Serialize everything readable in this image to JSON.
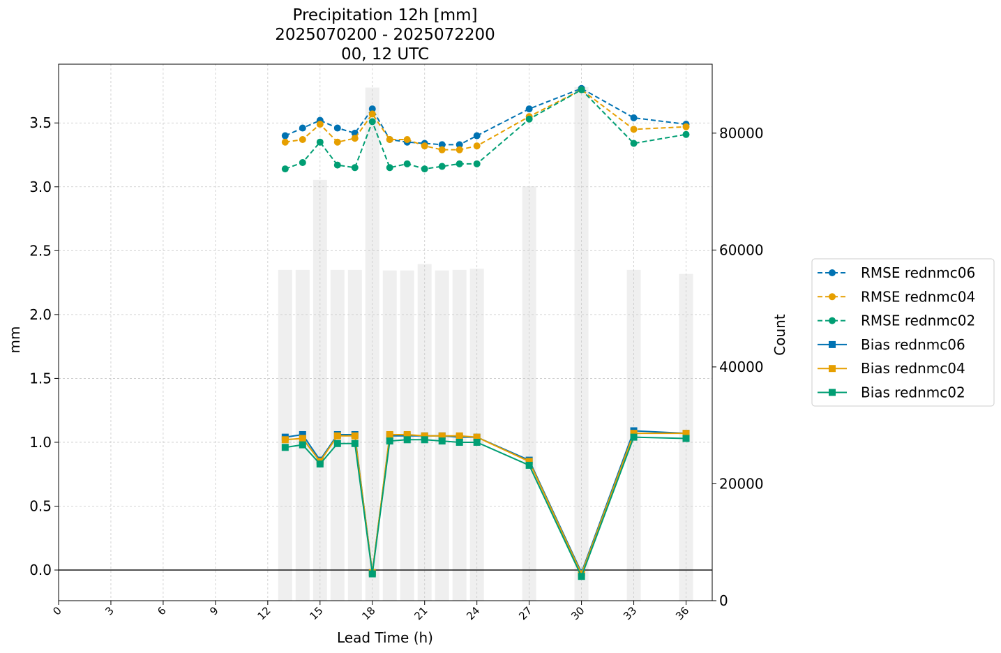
{
  "chart_data": {
    "type": "line",
    "title": [
      "Precipitation 12h [mm]",
      "2025070200 - 2025072200",
      "00, 12 UTC"
    ],
    "xlabel": "Lead Time (h)",
    "ylabel": "mm",
    "y2label": "Count",
    "xlim": [
      0,
      37.5
    ],
    "ylim": [
      -0.24,
      3.96
    ],
    "y2lim": [
      0,
      91800
    ],
    "xticks": [
      0,
      3,
      6,
      9,
      12,
      15,
      18,
      21,
      24,
      27,
      30,
      33,
      36
    ],
    "yticks": [
      0.0,
      0.5,
      1.0,
      1.5,
      2.0,
      2.5,
      3.0,
      3.5
    ],
    "y2ticks": [
      0,
      20000,
      40000,
      60000,
      80000
    ],
    "grid": true,
    "legend_placement": "right-outside",
    "x": [
      13,
      14,
      15,
      16,
      17,
      18,
      19,
      20,
      21,
      22,
      23,
      24,
      27,
      30,
      33,
      36
    ],
    "count": [
      56600,
      56600,
      72000,
      56600,
      56600,
      87800,
      56500,
      56500,
      57600,
      56500,
      56600,
      56800,
      70900,
      87900,
      56600,
      55900
    ],
    "series": [
      {
        "name": "RMSE rednmc06",
        "kind": "rmse",
        "color": "#0072B2",
        "values": [
          3.4,
          3.46,
          3.52,
          3.46,
          3.42,
          3.61,
          3.37,
          3.35,
          3.34,
          3.33,
          3.33,
          3.4,
          3.61,
          3.77,
          3.54,
          3.49
        ]
      },
      {
        "name": "RMSE rednmc04",
        "kind": "rmse",
        "color": "#E69F00",
        "values": [
          3.35,
          3.37,
          3.49,
          3.35,
          3.38,
          3.57,
          3.37,
          3.37,
          3.32,
          3.29,
          3.29,
          3.32,
          3.55,
          3.76,
          3.45,
          3.47
        ]
      },
      {
        "name": "RMSE rednmc02",
        "kind": "rmse",
        "color": "#009E73",
        "values": [
          3.14,
          3.19,
          3.35,
          3.17,
          3.15,
          3.51,
          3.15,
          3.18,
          3.14,
          3.16,
          3.18,
          3.18,
          3.53,
          3.76,
          3.34,
          3.41
        ]
      },
      {
        "name": "Bias rednmc06",
        "kind": "bias",
        "color": "#0072B2",
        "values": [
          1.04,
          1.06,
          0.86,
          1.06,
          1.06,
          -0.02,
          1.05,
          1.05,
          1.05,
          1.05,
          1.04,
          1.04,
          0.86,
          -0.02,
          1.09,
          1.07
        ]
      },
      {
        "name": "Bias rednmc04",
        "kind": "bias",
        "color": "#E69F00",
        "values": [
          1.02,
          1.03,
          0.85,
          1.05,
          1.05,
          -0.02,
          1.06,
          1.06,
          1.05,
          1.05,
          1.05,
          1.04,
          0.85,
          -0.03,
          1.07,
          1.07
        ]
      },
      {
        "name": "Bias rednmc02",
        "kind": "bias",
        "color": "#009E73",
        "values": [
          0.96,
          0.98,
          0.83,
          0.99,
          0.99,
          -0.03,
          1.01,
          1.02,
          1.02,
          1.01,
          1.0,
          1.0,
          0.82,
          -0.05,
          1.04,
          1.03
        ]
      }
    ]
  }
}
